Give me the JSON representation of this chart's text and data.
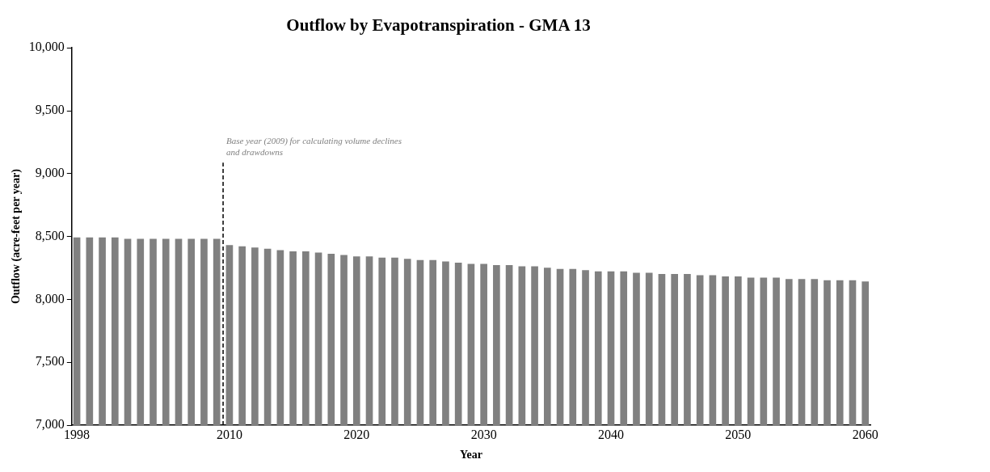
{
  "chart_data": {
    "type": "bar",
    "title": "Outflow by Evapotranspiration - GMA 13",
    "xlabel": "Year",
    "ylabel": "Outflow (acre-feet per year)",
    "x": [
      1998,
      1999,
      2000,
      2001,
      2002,
      2003,
      2004,
      2005,
      2006,
      2007,
      2008,
      2009,
      2010,
      2011,
      2012,
      2013,
      2014,
      2015,
      2016,
      2017,
      2018,
      2019,
      2020,
      2021,
      2022,
      2023,
      2024,
      2025,
      2026,
      2027,
      2028,
      2029,
      2030,
      2031,
      2032,
      2033,
      2034,
      2035,
      2036,
      2037,
      2038,
      2039,
      2040,
      2041,
      2042,
      2043,
      2044,
      2045,
      2046,
      2047,
      2048,
      2049,
      2050,
      2051,
      2052,
      2053,
      2054,
      2055,
      2056,
      2057,
      2058,
      2059,
      2060
    ],
    "values": [
      8490,
      8490,
      8490,
      8490,
      8480,
      8480,
      8480,
      8480,
      8480,
      8480,
      8480,
      8480,
      8430,
      8420,
      8410,
      8400,
      8390,
      8380,
      8380,
      8370,
      8360,
      8350,
      8340,
      8340,
      8330,
      8330,
      8320,
      8310,
      8310,
      8300,
      8290,
      8280,
      8280,
      8270,
      8270,
      8260,
      8260,
      8250,
      8240,
      8240,
      8230,
      8220,
      8220,
      8220,
      8210,
      8210,
      8200,
      8200,
      8200,
      8190,
      8190,
      8180,
      8180,
      8170,
      8170,
      8170,
      8160,
      8160,
      8160,
      8150,
      8150,
      8150,
      8140
    ],
    "color": "#808080",
    "xlim": [
      1997.6,
      2060.4
    ],
    "xticks": [
      1998,
      2010,
      2020,
      2030,
      2040,
      2050,
      2060
    ],
    "ylim": [
      7000,
      10000
    ],
    "yticks": [
      {
        "value": 7000,
        "label": "7,000"
      },
      {
        "value": 7500,
        "label": "7,500"
      },
      {
        "value": 8000,
        "label": "8,000"
      },
      {
        "value": 8500,
        "label": "8,500"
      },
      {
        "value": 9000,
        "label": "9,000"
      },
      {
        "value": 9500,
        "label": "9,500"
      },
      {
        "value": 10000,
        "label": "10,000"
      }
    ],
    "ref_lines": [
      {
        "axis": "x",
        "value": 2009.5,
        "label": "Base year (2009) for calculating volume declines and drawdowns",
        "color": "#000000",
        "line_style": "dashed"
      }
    ],
    "grid": false,
    "legend": false
  }
}
